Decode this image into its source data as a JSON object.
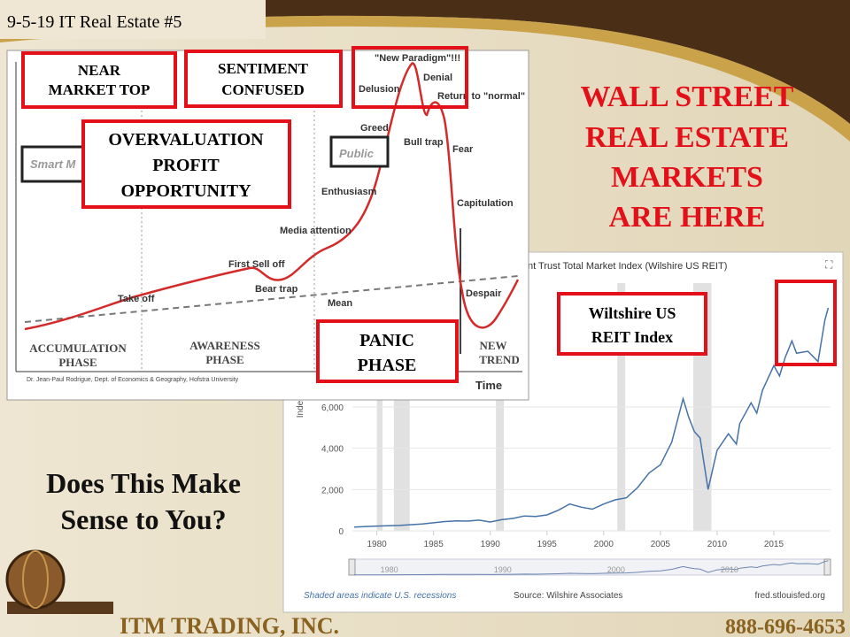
{
  "header": {
    "slide_label": "9-5-19 IT Real Estate #5"
  },
  "headline": [
    "WALL STREET",
    "REAL ESTATE",
    "MARKETS",
    "ARE HERE"
  ],
  "question": [
    "Does This Make",
    "Sense to You?"
  ],
  "bubble_chart": {
    "labels": {
      "smart_money": "Smart M",
      "public": "Public",
      "new_paradigm": "\"New Paradigm\"!!!",
      "delusion": "Delusion",
      "denial": "Denial",
      "return_to_normal": "Return to \"normal\"",
      "greed": "Greed",
      "bull_trap": "Bull trap",
      "fear": "Fear",
      "enthusiasm": "Enthusiasm",
      "capitulation": "Capitulation",
      "media_attention": "Media attention",
      "first_sell_off": "First Sell off",
      "bear_trap": "Bear trap",
      "take_off": "Take off",
      "mean": "Mean",
      "despair": "Despair",
      "time": "Time"
    },
    "phases": {
      "accumulation": [
        "ACCUMULATION",
        "PHASE"
      ],
      "awareness": [
        "AWARENESS",
        "PHASE"
      ],
      "new_trend": [
        "NEW",
        "TREND"
      ]
    },
    "credit": "Dr. Jean-Paul Rodrigue, Dept. of Economics & Geography, Hofstra University"
  },
  "callouts": {
    "near_market_top": [
      "NEAR",
      "MARKET TOP"
    ],
    "sentiment_confused": [
      "SENTIMENT",
      "CONFUSED"
    ],
    "overvaluation": [
      "OVERVALUATION",
      "PROFIT",
      "OPPORTUNITY"
    ],
    "panic_phase": [
      "PANIC",
      "PHASE"
    ],
    "reit_index": [
      "Wiltshire US",
      "REIT Index"
    ]
  },
  "chart_data": {
    "type": "line",
    "title": "nt Trust Total Market Index (Wilshire US REIT)",
    "y_label": "Index",
    "color": "#4572a7",
    "x": [
      1978,
      1980,
      1982,
      1984,
      1986,
      1987,
      1988,
      1989,
      1990,
      1991,
      1992,
      1993,
      1994,
      1995,
      1996,
      1997,
      1998,
      1999,
      2000,
      2001,
      2002,
      2003,
      2004,
      2005,
      2006,
      2007,
      2007.5,
      2008,
      2008.5,
      2009.2,
      2009.7,
      2010,
      2011,
      2011.7,
      2012,
      2013,
      2013.5,
      2014,
      2015,
      2015.5,
      2016,
      2016.6,
      2017,
      2018,
      2018.9,
      2019.5,
      2019.8
    ],
    "values": [
      180,
      230,
      260,
      330,
      450,
      480,
      470,
      520,
      430,
      540,
      600,
      720,
      700,
      770,
      1000,
      1300,
      1150,
      1050,
      1300,
      1500,
      1600,
      2100,
      2800,
      3200,
      4300,
      6400,
      5500,
      4800,
      4500,
      2000,
      3200,
      3900,
      4700,
      4200,
      5200,
      6200,
      5700,
      6800,
      8000,
      7500,
      8400,
      9200,
      8600,
      8700,
      8200,
      10200,
      10800
    ],
    "xlim": [
      1978,
      2020
    ],
    "ylim": [
      0,
      12000
    ],
    "xticks": [
      1980,
      1985,
      1990,
      1995,
      2000,
      2005,
      2010,
      2015
    ],
    "yticks": [
      0,
      {
        "value": 2000,
        "label": "2,000"
      },
      {
        "value": 4000,
        "label": "4,000"
      },
      {
        "value": 6000,
        "label": "6,000"
      }
    ],
    "recessions": [
      [
        1980,
        1980.5
      ],
      [
        1981.5,
        1982.9
      ],
      [
        1990.5,
        1991.2
      ],
      [
        2001.2,
        2001.9
      ],
      [
        2007.9,
        2009.5
      ]
    ],
    "navigator_ticks": [
      1980,
      1990,
      2000,
      2010
    ],
    "grid": true,
    "notes": {
      "recessions": "Shaded areas indicate U.S. recessions",
      "source": "Source: Wilshire Associates",
      "site": "fred.stlouisfed.org"
    }
  },
  "footer": {
    "company": "ITM TRADING, INC.",
    "phone": "888-696-4653"
  }
}
